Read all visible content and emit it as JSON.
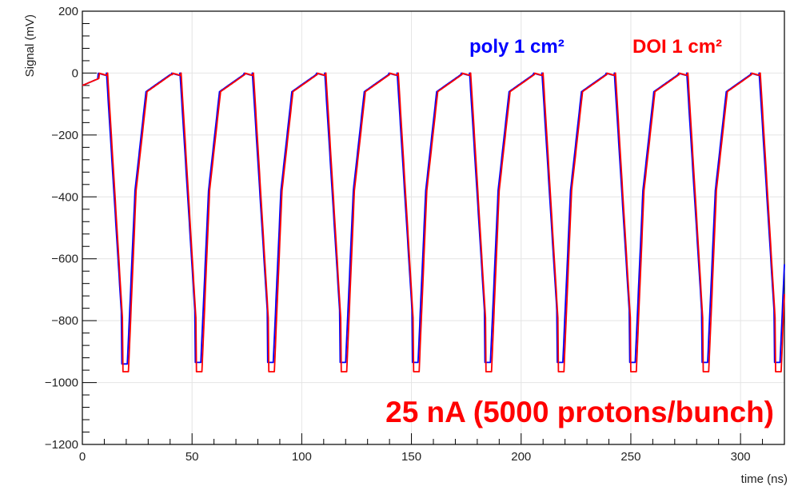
{
  "chart_data": {
    "type": "line",
    "xlabel": "time (ns)",
    "ylabel": "Signal (mV)",
    "xlim": [
      0,
      320
    ],
    "ylim": [
      -1200,
      200
    ],
    "x_ticks": [
      0,
      50,
      100,
      150,
      200,
      250,
      300
    ],
    "y_ticks": [
      200,
      0,
      -200,
      -400,
      -600,
      -800,
      -1000,
      -1200
    ],
    "x_tick_labels": [
      "0",
      "50",
      "100",
      "150",
      "200",
      "250",
      "300"
    ],
    "y_tick_labels": [
      "200",
      "0",
      "−200",
      "−400",
      "−600",
      "−800",
      "−1000",
      "−1200"
    ],
    "grid": true,
    "legend_position": "top-right",
    "bunch_period_ns": 33,
    "series": [
      {
        "name": "poly 1 cm²",
        "color": "#0000ff",
        "peak_times_ns": [
          19,
          52.5,
          85.5,
          118.5,
          151.5,
          184.5,
          217.5,
          250.5,
          283.5,
          316.5
        ],
        "min_values_mV": [
          -940,
          -935,
          -935,
          -935,
          -935,
          -935,
          -935,
          -935,
          -935,
          -935
        ],
        "baseline_mV": 0
      },
      {
        "name": "DOI 1 cm²",
        "color": "#ff0000",
        "peak_times_ns": [
          19.5,
          53,
          86,
          119,
          152,
          185,
          218,
          251,
          284,
          317
        ],
        "min_values_mV": [
          -965,
          -965,
          -965,
          -965,
          -965,
          -965,
          -965,
          -965,
          -965,
          -965
        ],
        "baseline_mV": 0
      }
    ],
    "annotation": "25 nA (5000 protons/bunch)",
    "annotation_color": "#ff0000"
  }
}
